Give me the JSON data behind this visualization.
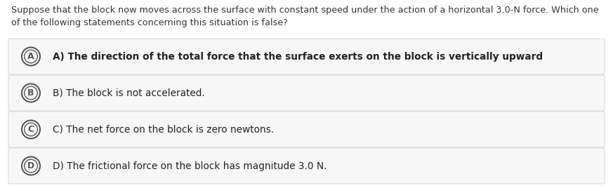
{
  "background_color": "#ffffff",
  "question_text_line1": "Suppose that the block now moves across the surface with constant speed under the action of a horizontal 3.0-N force. Which one",
  "question_text_line2": "of the following statements concerning this situation is false?",
  "options": [
    {
      "letter": "A",
      "text": "A) The direction of the total force that the surface exerts on the block is vertically upward",
      "bold": true
    },
    {
      "letter": "B",
      "text": "B) The block is not accelerated.",
      "bold": false
    },
    {
      "letter": "C",
      "text": "C) The net force on the block is zero newtons.",
      "bold": false
    },
    {
      "letter": "D",
      "text": "D) The frictional force on the block has magnitude 3.0 N.",
      "bold": false
    }
  ],
  "option_bg_color": "#f7f7f7",
  "option_text_color": "#222222",
  "question_text_color": "#333333",
  "circle_edge_color": "#555555",
  "circle_face_color": "#ffffff",
  "font_size_question": 9.2,
  "font_size_option": 9.8,
  "fig_width": 8.73,
  "fig_height": 2.68,
  "dpi": 100
}
